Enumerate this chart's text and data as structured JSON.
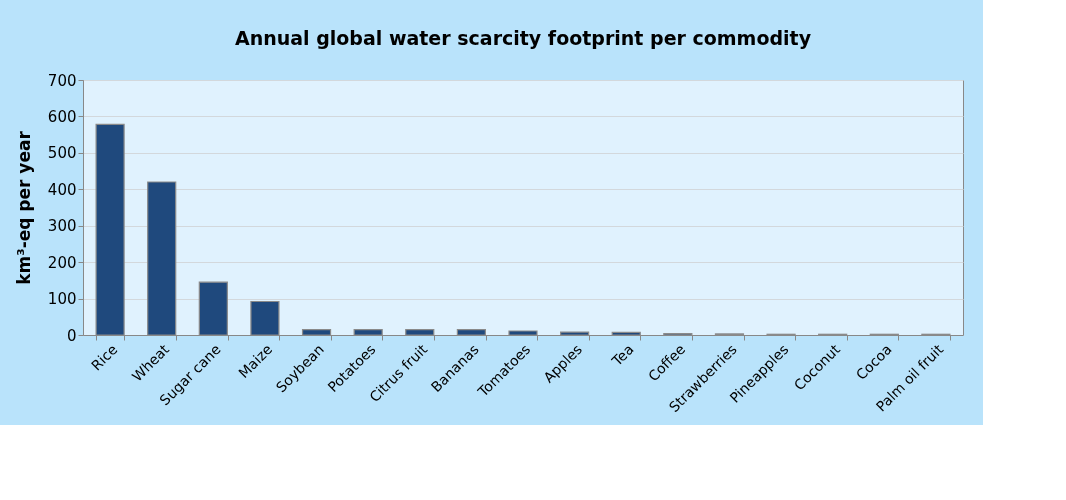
{
  "chart_data": {
    "type": "bar",
    "title": "Annual global water scarcity footprint per commodity",
    "ylabel": "km³-eq per year",
    "categories": [
      "Rice",
      "Wheat",
      "Sugar cane",
      "Maize",
      "Soybean",
      "Potatoes",
      "Citrus fruit",
      "Bananas",
      "Tomatoes",
      "Apples",
      "Tea",
      "Coffee",
      "Strawberries",
      "Pineapples",
      "Coconut",
      "Cocoa",
      "Palm oil fruit"
    ],
    "values": [
      578,
      420,
      145,
      92,
      15,
      15,
      15,
      15,
      11,
      8,
      7,
      4,
      3,
      2,
      2,
      2,
      2
    ],
    "color": "#1f497d",
    "ylim": [
      0,
      700
    ],
    "yticks": [
      0,
      100,
      200,
      300,
      400,
      500,
      600,
      700
    ],
    "grid": "y"
  }
}
